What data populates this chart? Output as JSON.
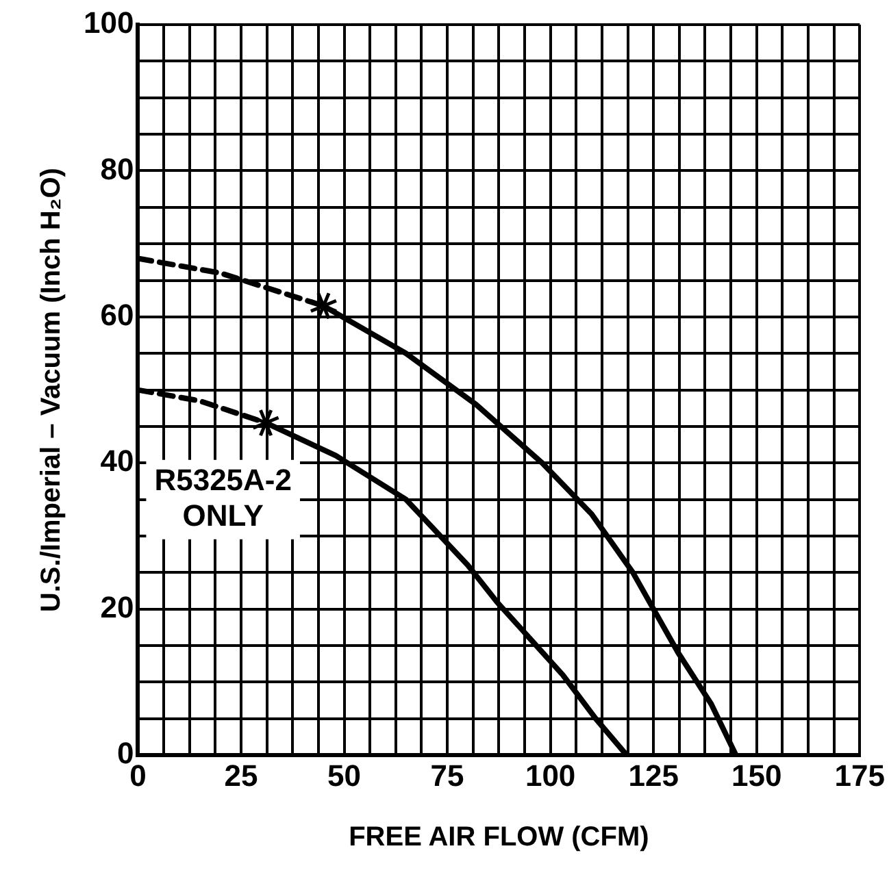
{
  "chart_data": {
    "type": "line",
    "xlabel": "FREE AIR FLOW (CFM)",
    "ylabel": "U.S./Imperial – Vacuum (Inch H₂O)",
    "xlim": [
      0,
      175
    ],
    "ylim": [
      0,
      100
    ],
    "xticks": [
      0,
      {
        "value": 6.25,
        "label": null
      },
      {
        "value": 12.5,
        "label": null
      },
      {
        "value": 18.75,
        "label": null
      },
      25,
      {
        "value": 31.25,
        "label": null
      },
      {
        "value": 37.5,
        "label": null
      },
      {
        "value": 43.75,
        "label": null
      },
      50,
      {
        "value": 56.25,
        "label": null
      },
      {
        "value": 62.5,
        "label": null
      },
      {
        "value": 68.75,
        "label": null
      },
      75,
      {
        "value": 81.25,
        "label": null
      },
      {
        "value": 87.5,
        "label": null
      },
      {
        "value": 93.75,
        "label": null
      },
      100,
      {
        "value": 106.25,
        "label": null
      },
      {
        "value": 112.5,
        "label": null
      },
      {
        "value": 118.75,
        "label": null
      },
      125,
      {
        "value": 131.25,
        "label": null
      },
      {
        "value": 137.5,
        "label": null
      },
      {
        "value": 143.75,
        "label": null
      },
      150,
      {
        "value": 156.25,
        "label": null
      },
      {
        "value": 162.5,
        "label": null
      },
      {
        "value": 168.75,
        "label": null
      },
      175
    ],
    "yticks": [
      0,
      {
        "value": 5,
        "label": null
      },
      {
        "value": 10,
        "label": null
      },
      {
        "value": 15,
        "label": null
      },
      20,
      {
        "value": 25,
        "label": null
      },
      {
        "value": 30,
        "label": null
      },
      {
        "value": 35,
        "label": null
      },
      40,
      {
        "value": 45,
        "label": null
      },
      {
        "value": 50,
        "label": null
      },
      {
        "value": 55,
        "label": null
      },
      60,
      {
        "value": 65,
        "label": null
      },
      {
        "value": 70,
        "label": null
      },
      {
        "value": 75,
        "label": null
      },
      80,
      {
        "value": 85,
        "label": null
      },
      {
        "value": 90,
        "label": null
      },
      {
        "value": 95,
        "label": null
      },
      100
    ],
    "grid": true,
    "legend": false,
    "series": [
      {
        "type": "line",
        "color": "#000000",
        "line_style": "dashed",
        "marker": "none",
        "x": [
          0,
          20,
          45
        ],
        "values": [
          68,
          66,
          61.5
        ]
      },
      {
        "type": "line",
        "color": "#000000",
        "line_style": "solid",
        "marker": "none",
        "x": [
          45,
          65,
          82,
          98,
          110,
          120,
          131,
          139,
          145
        ],
        "values": [
          61.5,
          55,
          48,
          40,
          33,
          25,
          14,
          7,
          0
        ]
      },
      {
        "type": "line",
        "color": "#000000",
        "line_style": "dashed",
        "marker": "none",
        "x": [
          0,
          15,
          31
        ],
        "values": [
          50,
          48.5,
          45.5
        ]
      },
      {
        "type": "line",
        "color": "#000000",
        "line_style": "solid",
        "marker": "none",
        "x": [
          31,
          48,
          65,
          80,
          87,
          95,
          103,
          111,
          118.5
        ],
        "values": [
          45.5,
          41,
          35,
          26,
          21,
          16,
          11,
          5,
          0
        ]
      },
      {
        "type": "scatter",
        "color": "#000000",
        "marker": "cross",
        "x": [
          45,
          31
        ],
        "values": [
          61.5,
          45.5
        ]
      }
    ],
    "annotations": [
      "R5325A-2\nONLY"
    ]
  }
}
